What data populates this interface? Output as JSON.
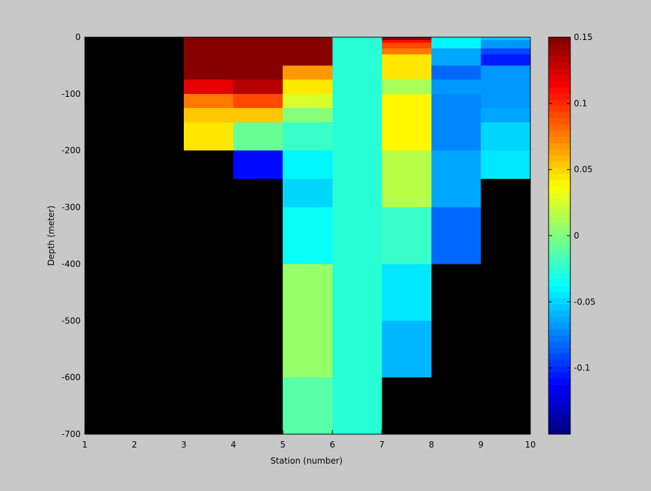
{
  "chart_data": {
    "type": "heatmap",
    "title": "",
    "xlabel": "Station (number)",
    "ylabel": "Depth (meter)",
    "xlim": [
      1,
      10
    ],
    "ylim": [
      -700,
      0
    ],
    "xticks": [
      "1",
      "2",
      "3",
      "4",
      "5",
      "6",
      "7",
      "8",
      "9",
      "10"
    ],
    "yticks": [
      "0",
      "-100",
      "-200",
      "-300",
      "-400",
      "-500",
      "-600",
      "-700"
    ],
    "background_color": "#000000",
    "colorbar": {
      "colormap": "jet",
      "clim": [
        -0.15,
        0.15
      ],
      "ticks": [
        "0.15",
        "0.1",
        "0.05",
        "0",
        "-0.05",
        "-0.1"
      ],
      "levels": 64
    },
    "cells": [
      {
        "x0": 3,
        "x1": 4,
        "y0": 0,
        "y1": -75,
        "v": 0.15
      },
      {
        "x0": 3,
        "x1": 4,
        "y0": -75,
        "y1": -100,
        "v": 0.12
      },
      {
        "x0": 3,
        "x1": 4,
        "y0": -100,
        "y1": -125,
        "v": 0.075
      },
      {
        "x0": 3,
        "x1": 4,
        "y0": -125,
        "y1": -150,
        "v": 0.055
      },
      {
        "x0": 3,
        "x1": 4,
        "y0": -150,
        "y1": -200,
        "v": 0.045
      },
      {
        "x0": 4,
        "x1": 5,
        "y0": 0,
        "y1": -75,
        "v": 0.15
      },
      {
        "x0": 4,
        "x1": 5,
        "y0": -75,
        "y1": -100,
        "v": 0.135
      },
      {
        "x0": 4,
        "x1": 5,
        "y0": -100,
        "y1": -125,
        "v": 0.09
      },
      {
        "x0": 4,
        "x1": 5,
        "y0": -125,
        "y1": -150,
        "v": 0.055
      },
      {
        "x0": 4,
        "x1": 5,
        "y0": -150,
        "y1": -200,
        "v": -0.005
      },
      {
        "x0": 4,
        "x1": 5,
        "y0": -200,
        "y1": -250,
        "v": -0.11
      },
      {
        "x0": 5,
        "x1": 6,
        "y0": 0,
        "y1": -50,
        "v": 0.15
      },
      {
        "x0": 5,
        "x1": 6,
        "y0": -50,
        "y1": -75,
        "v": 0.07
      },
      {
        "x0": 5,
        "x1": 6,
        "y0": -75,
        "y1": -100,
        "v": 0.045
      },
      {
        "x0": 5,
        "x1": 6,
        "y0": -100,
        "y1": -125,
        "v": 0.025
      },
      {
        "x0": 5,
        "x1": 6,
        "y0": -125,
        "y1": -150,
        "v": 0.0
      },
      {
        "x0": 5,
        "x1": 6,
        "y0": -150,
        "y1": -200,
        "v": -0.02
      },
      {
        "x0": 5,
        "x1": 6,
        "y0": -200,
        "y1": -250,
        "v": -0.04
      },
      {
        "x0": 5,
        "x1": 6,
        "y0": -250,
        "y1": -300,
        "v": -0.05
      },
      {
        "x0": 5,
        "x1": 6,
        "y0": -300,
        "y1": -400,
        "v": -0.035
      },
      {
        "x0": 5,
        "x1": 6,
        "y0": -400,
        "y1": -600,
        "v": 0.005
      },
      {
        "x0": 5,
        "x1": 6,
        "y0": -600,
        "y1": -700,
        "v": -0.01
      },
      {
        "x0": 6,
        "x1": 7,
        "y0": 0,
        "y1": -700,
        "v": -0.025
      },
      {
        "x0": 7,
        "x1": 8,
        "y0": 0,
        "y1": -5,
        "v": 0.15
      },
      {
        "x0": 7,
        "x1": 8,
        "y0": -5,
        "y1": -10,
        "v": 0.11
      },
      {
        "x0": 7,
        "x1": 8,
        "y0": -10,
        "y1": -20,
        "v": 0.09
      },
      {
        "x0": 7,
        "x1": 8,
        "y0": -20,
        "y1": -30,
        "v": 0.075
      },
      {
        "x0": 7,
        "x1": 8,
        "y0": -30,
        "y1": -75,
        "v": 0.045
      },
      {
        "x0": 7,
        "x1": 8,
        "y0": -75,
        "y1": -100,
        "v": 0.01
      },
      {
        "x0": 7,
        "x1": 8,
        "y0": -100,
        "y1": -200,
        "v": 0.04
      },
      {
        "x0": 7,
        "x1": 8,
        "y0": -200,
        "y1": -300,
        "v": 0.015
      },
      {
        "x0": 7,
        "x1": 8,
        "y0": -300,
        "y1": -400,
        "v": -0.02
      },
      {
        "x0": 7,
        "x1": 8,
        "y0": -400,
        "y1": -500,
        "v": -0.045
      },
      {
        "x0": 7,
        "x1": 8,
        "y0": -500,
        "y1": -600,
        "v": -0.06
      },
      {
        "x0": 8,
        "x1": 9,
        "y0": 0,
        "y1": -20,
        "v": -0.04
      },
      {
        "x0": 8,
        "x1": 9,
        "y0": -20,
        "y1": -50,
        "v": -0.065
      },
      {
        "x0": 8,
        "x1": 9,
        "y0": -50,
        "y1": -75,
        "v": -0.08
      },
      {
        "x0": 8,
        "x1": 9,
        "y0": -75,
        "y1": -100,
        "v": -0.07
      },
      {
        "x0": 8,
        "x1": 9,
        "y0": -100,
        "y1": -200,
        "v": -0.075
      },
      {
        "x0": 8,
        "x1": 9,
        "y0": -200,
        "y1": -300,
        "v": -0.065
      },
      {
        "x0": 8,
        "x1": 9,
        "y0": -300,
        "y1": -400,
        "v": -0.08
      },
      {
        "x0": 9,
        "x1": 10,
        "y0": 0,
        "y1": -5,
        "v": -0.055
      },
      {
        "x0": 9,
        "x1": 10,
        "y0": -5,
        "y1": -20,
        "v": -0.07
      },
      {
        "x0": 9,
        "x1": 10,
        "y0": -20,
        "y1": -30,
        "v": -0.09
      },
      {
        "x0": 9,
        "x1": 10,
        "y0": -30,
        "y1": -50,
        "v": -0.105
      },
      {
        "x0": 9,
        "x1": 10,
        "y0": -50,
        "y1": -125,
        "v": -0.07
      },
      {
        "x0": 9,
        "x1": 10,
        "y0": -125,
        "y1": -150,
        "v": -0.065
      },
      {
        "x0": 9,
        "x1": 10,
        "y0": -150,
        "y1": -200,
        "v": -0.05
      },
      {
        "x0": 9,
        "x1": 10,
        "y0": -200,
        "y1": -250,
        "v": -0.045
      }
    ]
  }
}
